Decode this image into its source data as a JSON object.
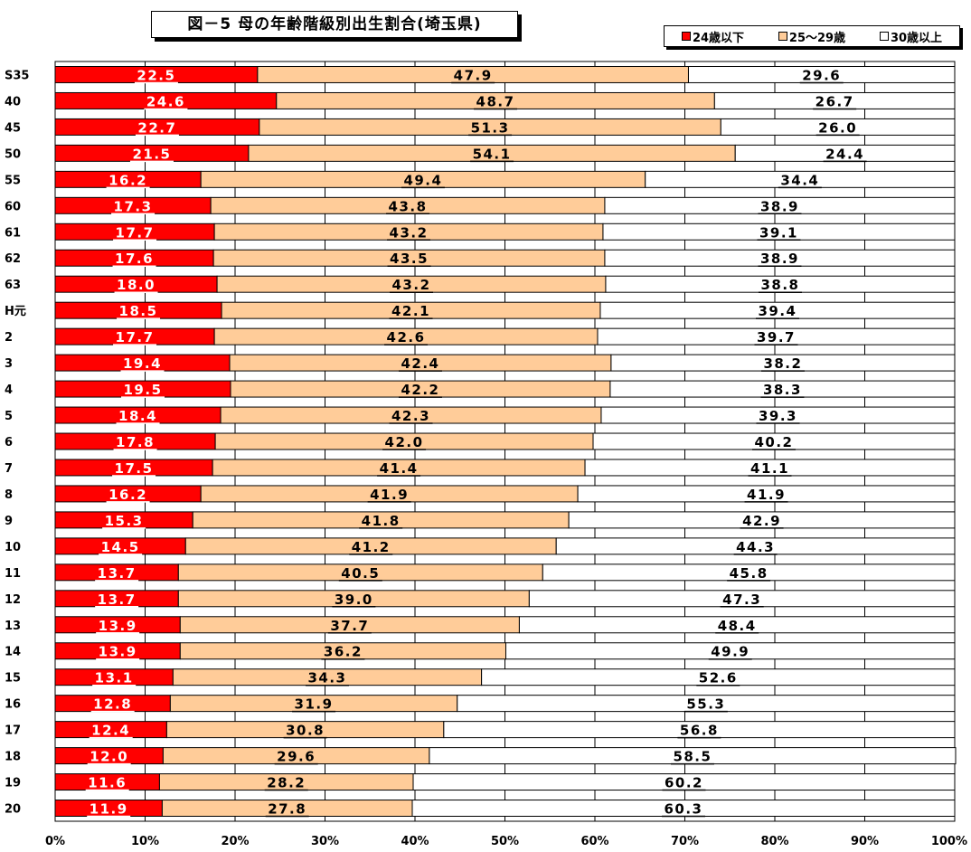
{
  "chart_data": {
    "type": "bar",
    "orientation": "horizontal",
    "stacked": true,
    "title": "図－5 母の年齢階級別出生割合(埼玉県)",
    "categories": [
      "S35",
      "40",
      "45",
      "50",
      "55",
      "60",
      "61",
      "62",
      "63",
      "H元",
      "2",
      "3",
      "4",
      "5",
      "6",
      "7",
      "8",
      "9",
      "10",
      "11",
      "12",
      "13",
      "14",
      "15",
      "16",
      "17",
      "18",
      "19",
      "20"
    ],
    "series": [
      {
        "name": "24歳以下",
        "color": "#ff0000",
        "values": [
          22.5,
          24.6,
          22.7,
          21.5,
          16.2,
          17.3,
          17.7,
          17.6,
          18.0,
          18.5,
          17.7,
          19.4,
          19.5,
          18.4,
          17.8,
          17.5,
          16.2,
          15.3,
          14.5,
          13.7,
          13.7,
          13.9,
          13.9,
          13.1,
          12.8,
          12.4,
          12.0,
          11.6,
          11.9
        ]
      },
      {
        "name": "25～29歳",
        "color": "#ffcc99",
        "values": [
          47.9,
          48.7,
          51.3,
          54.1,
          49.4,
          43.8,
          43.2,
          43.5,
          43.2,
          42.1,
          42.6,
          42.4,
          42.2,
          42.3,
          42.0,
          41.4,
          41.9,
          41.8,
          41.2,
          40.5,
          39.0,
          37.7,
          36.2,
          34.3,
          31.9,
          30.8,
          29.6,
          28.2,
          27.8
        ]
      },
      {
        "name": "30歳以上",
        "color": "#ffffff",
        "values": [
          29.6,
          26.7,
          26.0,
          24.4,
          34.4,
          38.9,
          39.1,
          38.9,
          38.8,
          39.4,
          39.7,
          38.2,
          38.3,
          39.3,
          40.2,
          41.1,
          41.9,
          42.9,
          44.3,
          45.8,
          47.3,
          48.4,
          49.9,
          52.6,
          55.3,
          56.8,
          58.5,
          60.2,
          60.3
        ]
      }
    ],
    "xlim": [
      0,
      100
    ],
    "xticks": [
      "0%",
      "10%",
      "20%",
      "30%",
      "40%",
      "50%",
      "60%",
      "70%",
      "80%",
      "90%",
      "100%"
    ],
    "grid": true,
    "legend_position": "top-right"
  }
}
